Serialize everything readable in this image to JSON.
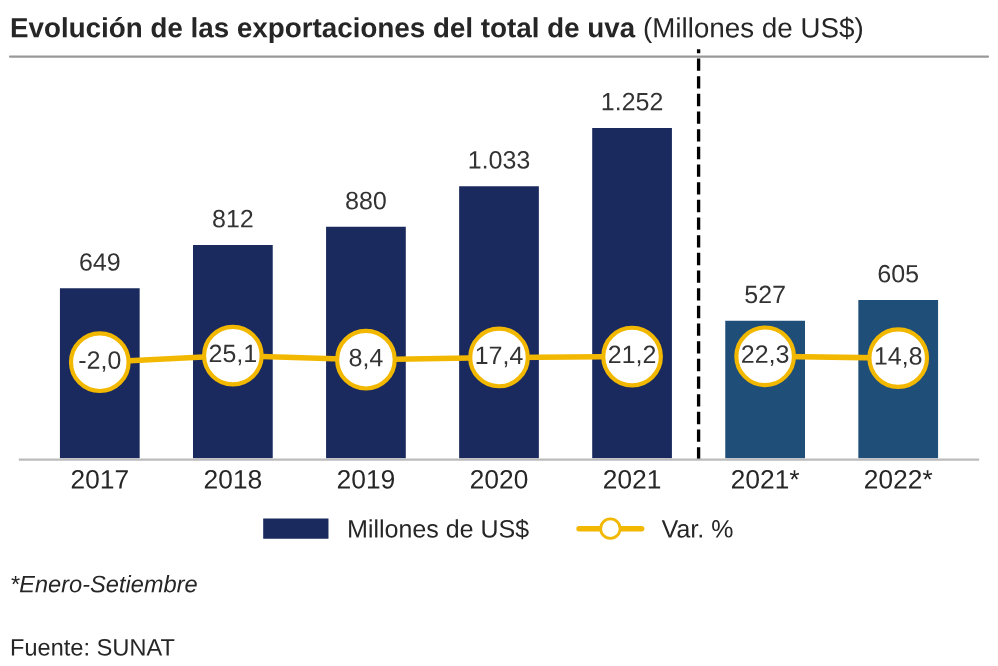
{
  "chart_data": {
    "type": "bar",
    "title": "Evolución de las exportaciones del total de uva",
    "subtitle": "(Millones de US$)",
    "categories": [
      "2017",
      "2018",
      "2019",
      "2020",
      "2021",
      "2021*",
      "2022*"
    ],
    "series": [
      {
        "name": "Millones de US$",
        "color": "#1b2a5e",
        "colors": [
          "#1b2a5e",
          "#1b2a5e",
          "#1b2a5e",
          "#1b2a5e",
          "#1b2a5e",
          "#1f4e79",
          "#1f4e79"
        ],
        "values": [
          649,
          812,
          880,
          1033,
          1252,
          527,
          605
        ],
        "value_labels": [
          "649",
          "812",
          "880",
          "1.033",
          "1.252",
          "527",
          "605"
        ]
      },
      {
        "name": "Var. %",
        "type": "line",
        "axis": "y2",
        "color": "#f2b800",
        "values": [
          -2.0,
          25.1,
          8.4,
          17.4,
          21.2,
          null,
          null
        ],
        "value_labels": [
          "-2,0",
          "25,1",
          "8,4",
          "17,4",
          "21,2",
          null,
          null
        ]
      },
      {
        "type": "line",
        "axis": "y2",
        "color": "#f2b800",
        "values": [
          null,
          null,
          null,
          null,
          null,
          22.3,
          14.8
        ],
        "value_labels": [
          null,
          null,
          null,
          null,
          null,
          "22,3",
          "14,8"
        ]
      }
    ],
    "tick_labels": "x",
    "marker": "circle",
    "line_style": "solid",
    "legend": "bottom",
    "grid": false,
    "annotations": [
      "*Enero-Setiembre",
      "Fuente: SUNAT"
    ]
  }
}
